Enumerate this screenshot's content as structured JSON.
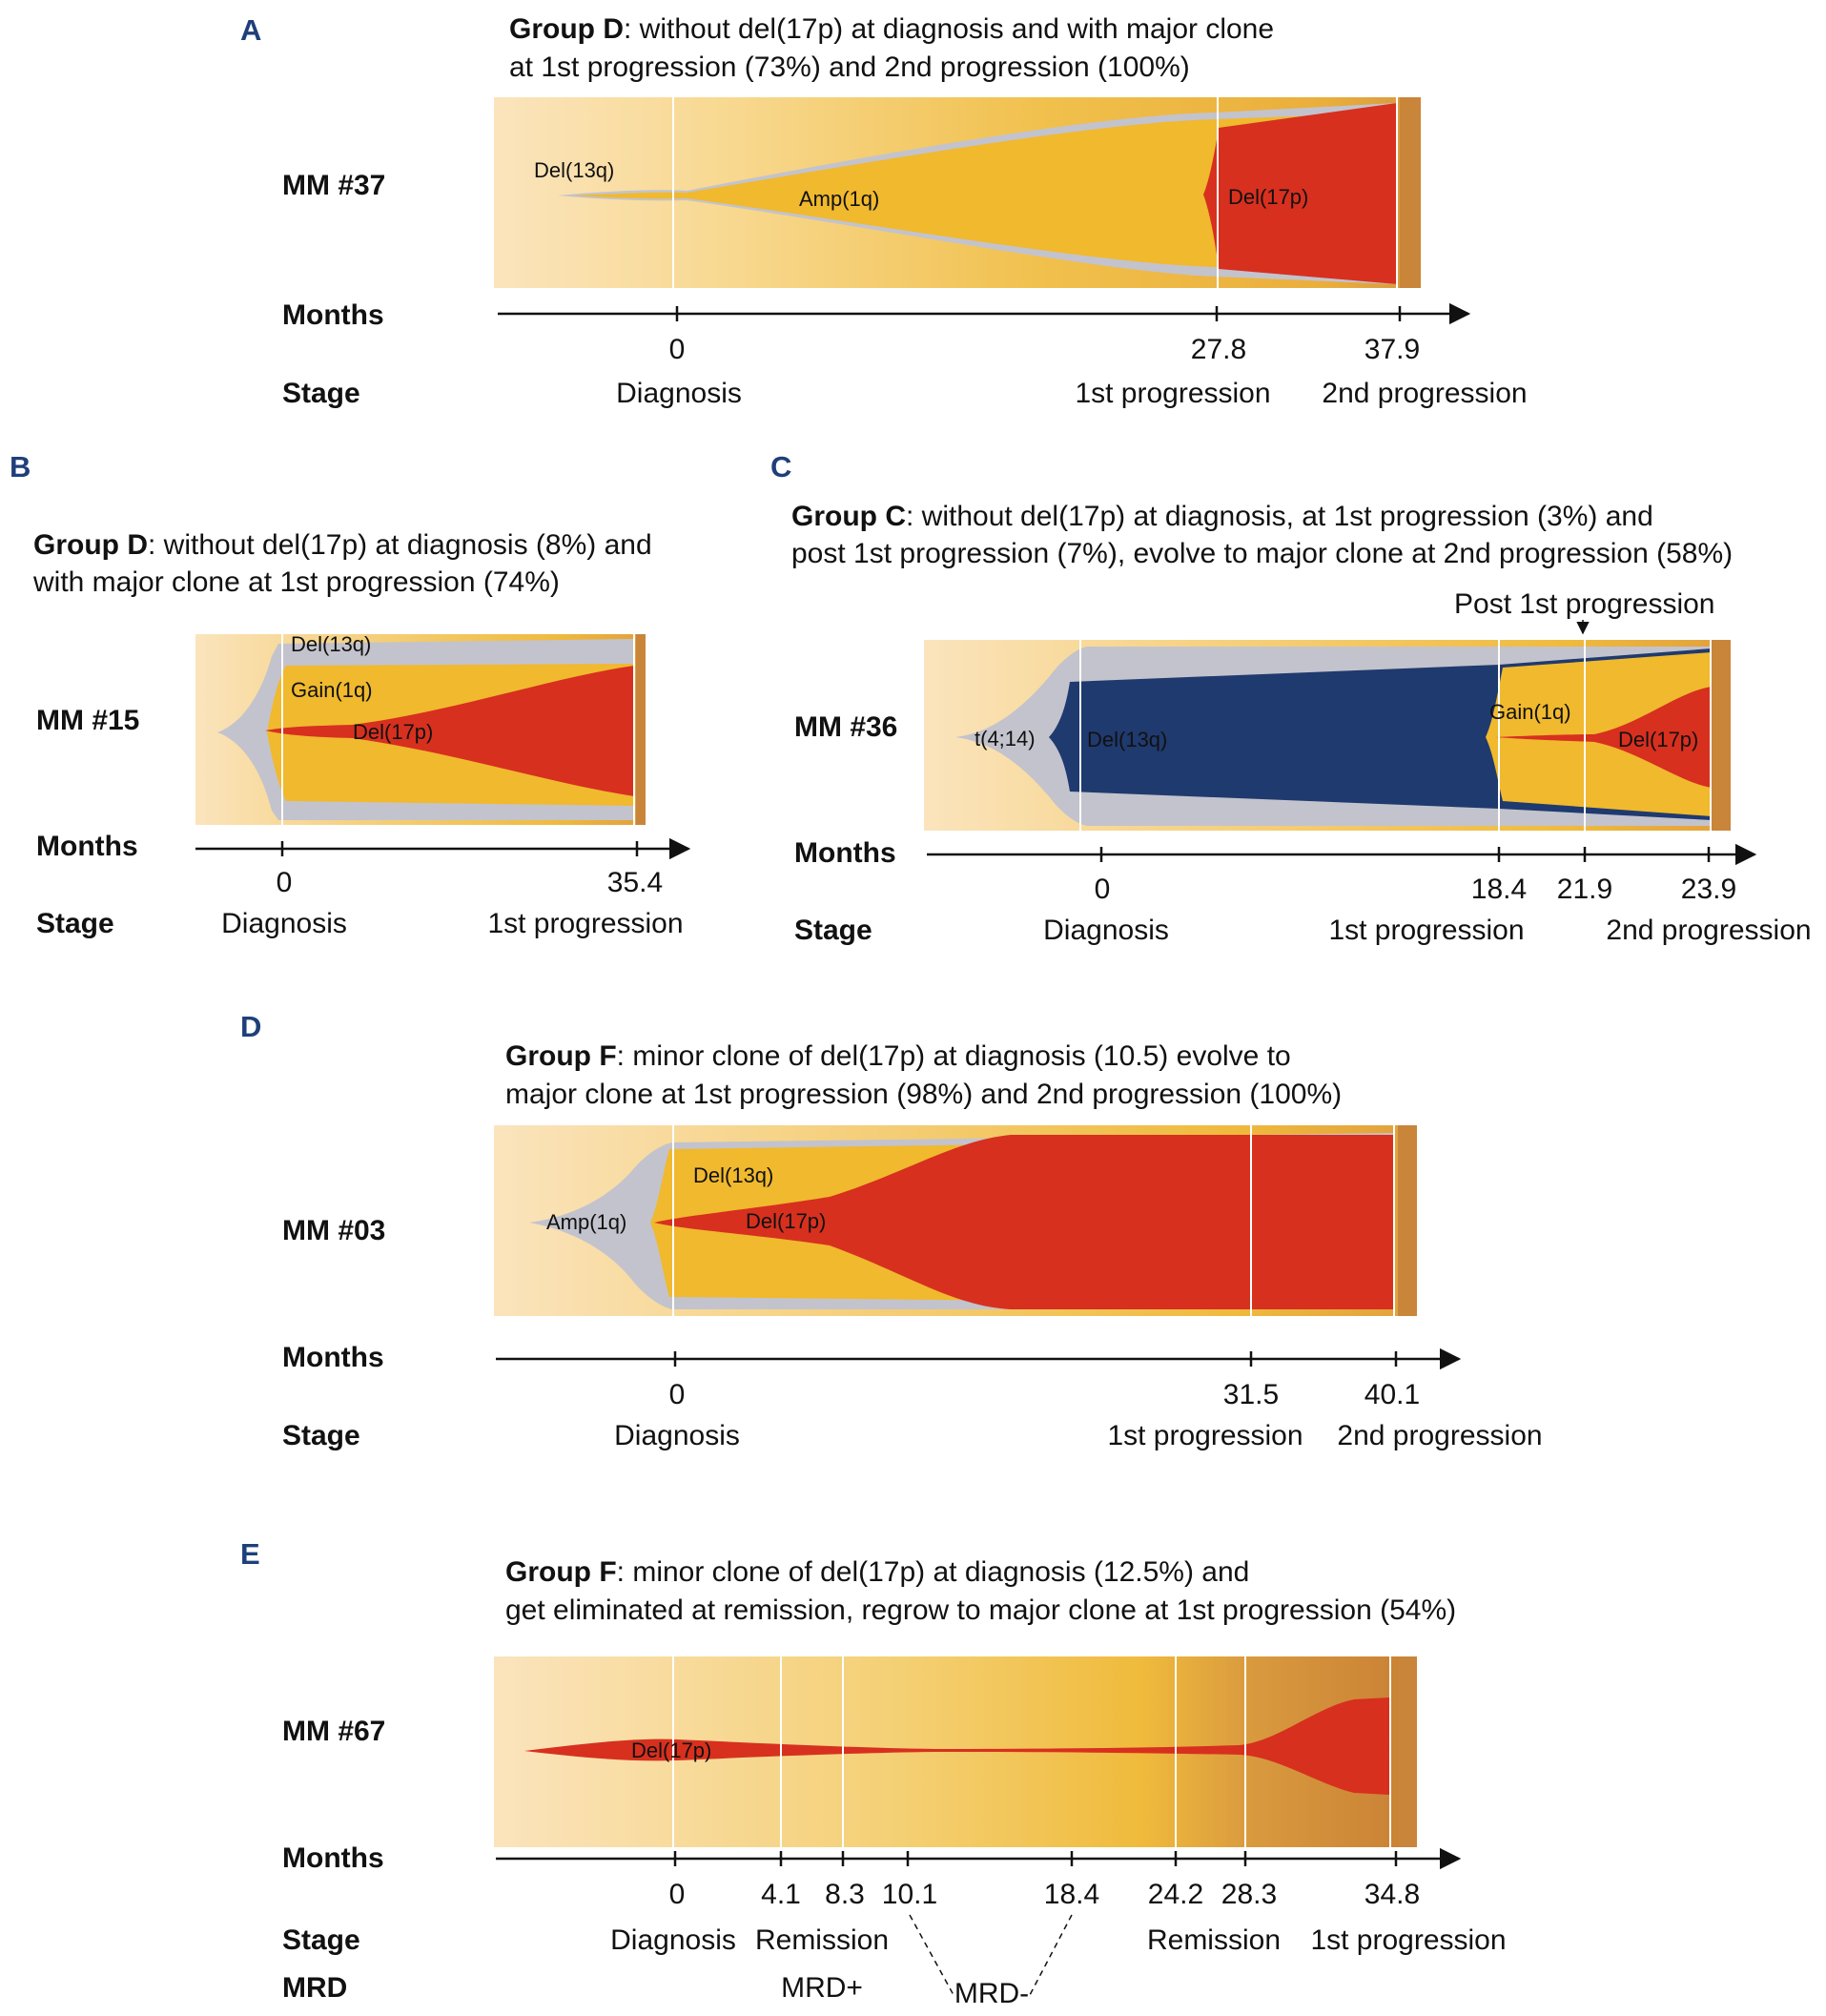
{
  "colors": {
    "yellow": "#f0b92e",
    "red": "#d7301f",
    "grey": "#c3c3cd",
    "navy": "#1f3a6e",
    "brown": "#c9853a",
    "bg_light": "#fae3ba",
    "panel_letter": "#1f3f7a"
  },
  "panels": [
    {
      "letter": "A",
      "title_bold": "Group D",
      "title_line1_rest": ": without del(17p) at diagnosis and with major clone",
      "title_line2": "at 1st progression (73%) and 2nd progression (100%)",
      "patient": "MM #37",
      "months_label": "Months",
      "stage_label": "Stage",
      "ticks": [
        "0",
        "27.8",
        "37.9"
      ],
      "stages": [
        "Diagnosis",
        "1st progression",
        "2nd progression"
      ],
      "clones": [
        "Del(13q)",
        "Amp(1q)",
        "Del(17p)"
      ]
    },
    {
      "letter": "B",
      "title_bold": "Group D",
      "title_line1_rest": ": without del(17p) at diagnosis (8%) and",
      "title_line2": "with major clone at 1st progression (74%)",
      "patient": "MM #15",
      "months_label": "Months",
      "stage_label": "Stage",
      "ticks": [
        "0",
        "35.4"
      ],
      "stages": [
        "Diagnosis",
        "1st progression"
      ],
      "clones": [
        "Del(13q)",
        "Gain(1q)",
        "Del(17p)"
      ]
    },
    {
      "letter": "C",
      "title_bold": "Group C",
      "title_line1_rest": ": without del(17p) at diagnosis, at 1st progression (3%) and",
      "title_line2": "post 1st progression (7%), evolve to major clone at 2nd progression (58%)",
      "annotation": "Post 1st progression",
      "patient": "MM #36",
      "months_label": "Months",
      "stage_label": "Stage",
      "ticks": [
        "0",
        "18.4",
        "21.9",
        "23.9"
      ],
      "stages": [
        "Diagnosis",
        "1st progression",
        "2nd progression"
      ],
      "clones": [
        "t(4;14)",
        "Del(13q)",
        "Gain(1q)",
        "Del(17p)"
      ]
    },
    {
      "letter": "D",
      "title_bold": "Group F",
      "title_line1_rest": ": minor clone of del(17p) at diagnosis (10.5) evolve to",
      "title_line2": "major clone at 1st progression (98%) and 2nd progression (100%)",
      "patient": "MM #03",
      "months_label": "Months",
      "stage_label": "Stage",
      "ticks": [
        "0",
        "31.5",
        "40.1"
      ],
      "stages": [
        "Diagnosis",
        "1st progression",
        "2nd progression"
      ],
      "clones": [
        "Amp(1q)",
        "Del(13q)",
        "Del(17p)"
      ]
    },
    {
      "letter": "E",
      "title_bold": "Group F",
      "title_line1_rest": ": minor clone of del(17p) at diagnosis (12.5%) and",
      "title_line2": "get eliminated at remission, regrow to major clone at 1st progression (54%)",
      "patient": "MM #67",
      "months_label": "Months",
      "stage_label": "Stage",
      "mrd_label": "MRD",
      "ticks": [
        "0",
        "4.1",
        "8.3",
        "10.1",
        "18.4",
        "24.2",
        "28.3",
        "34.8"
      ],
      "stages": [
        "Diagnosis",
        "Remission",
        "Remission",
        "1st progression"
      ],
      "mrd": [
        "MRD+",
        "MRD-"
      ],
      "clones": [
        "Del(17p)"
      ]
    }
  ]
}
